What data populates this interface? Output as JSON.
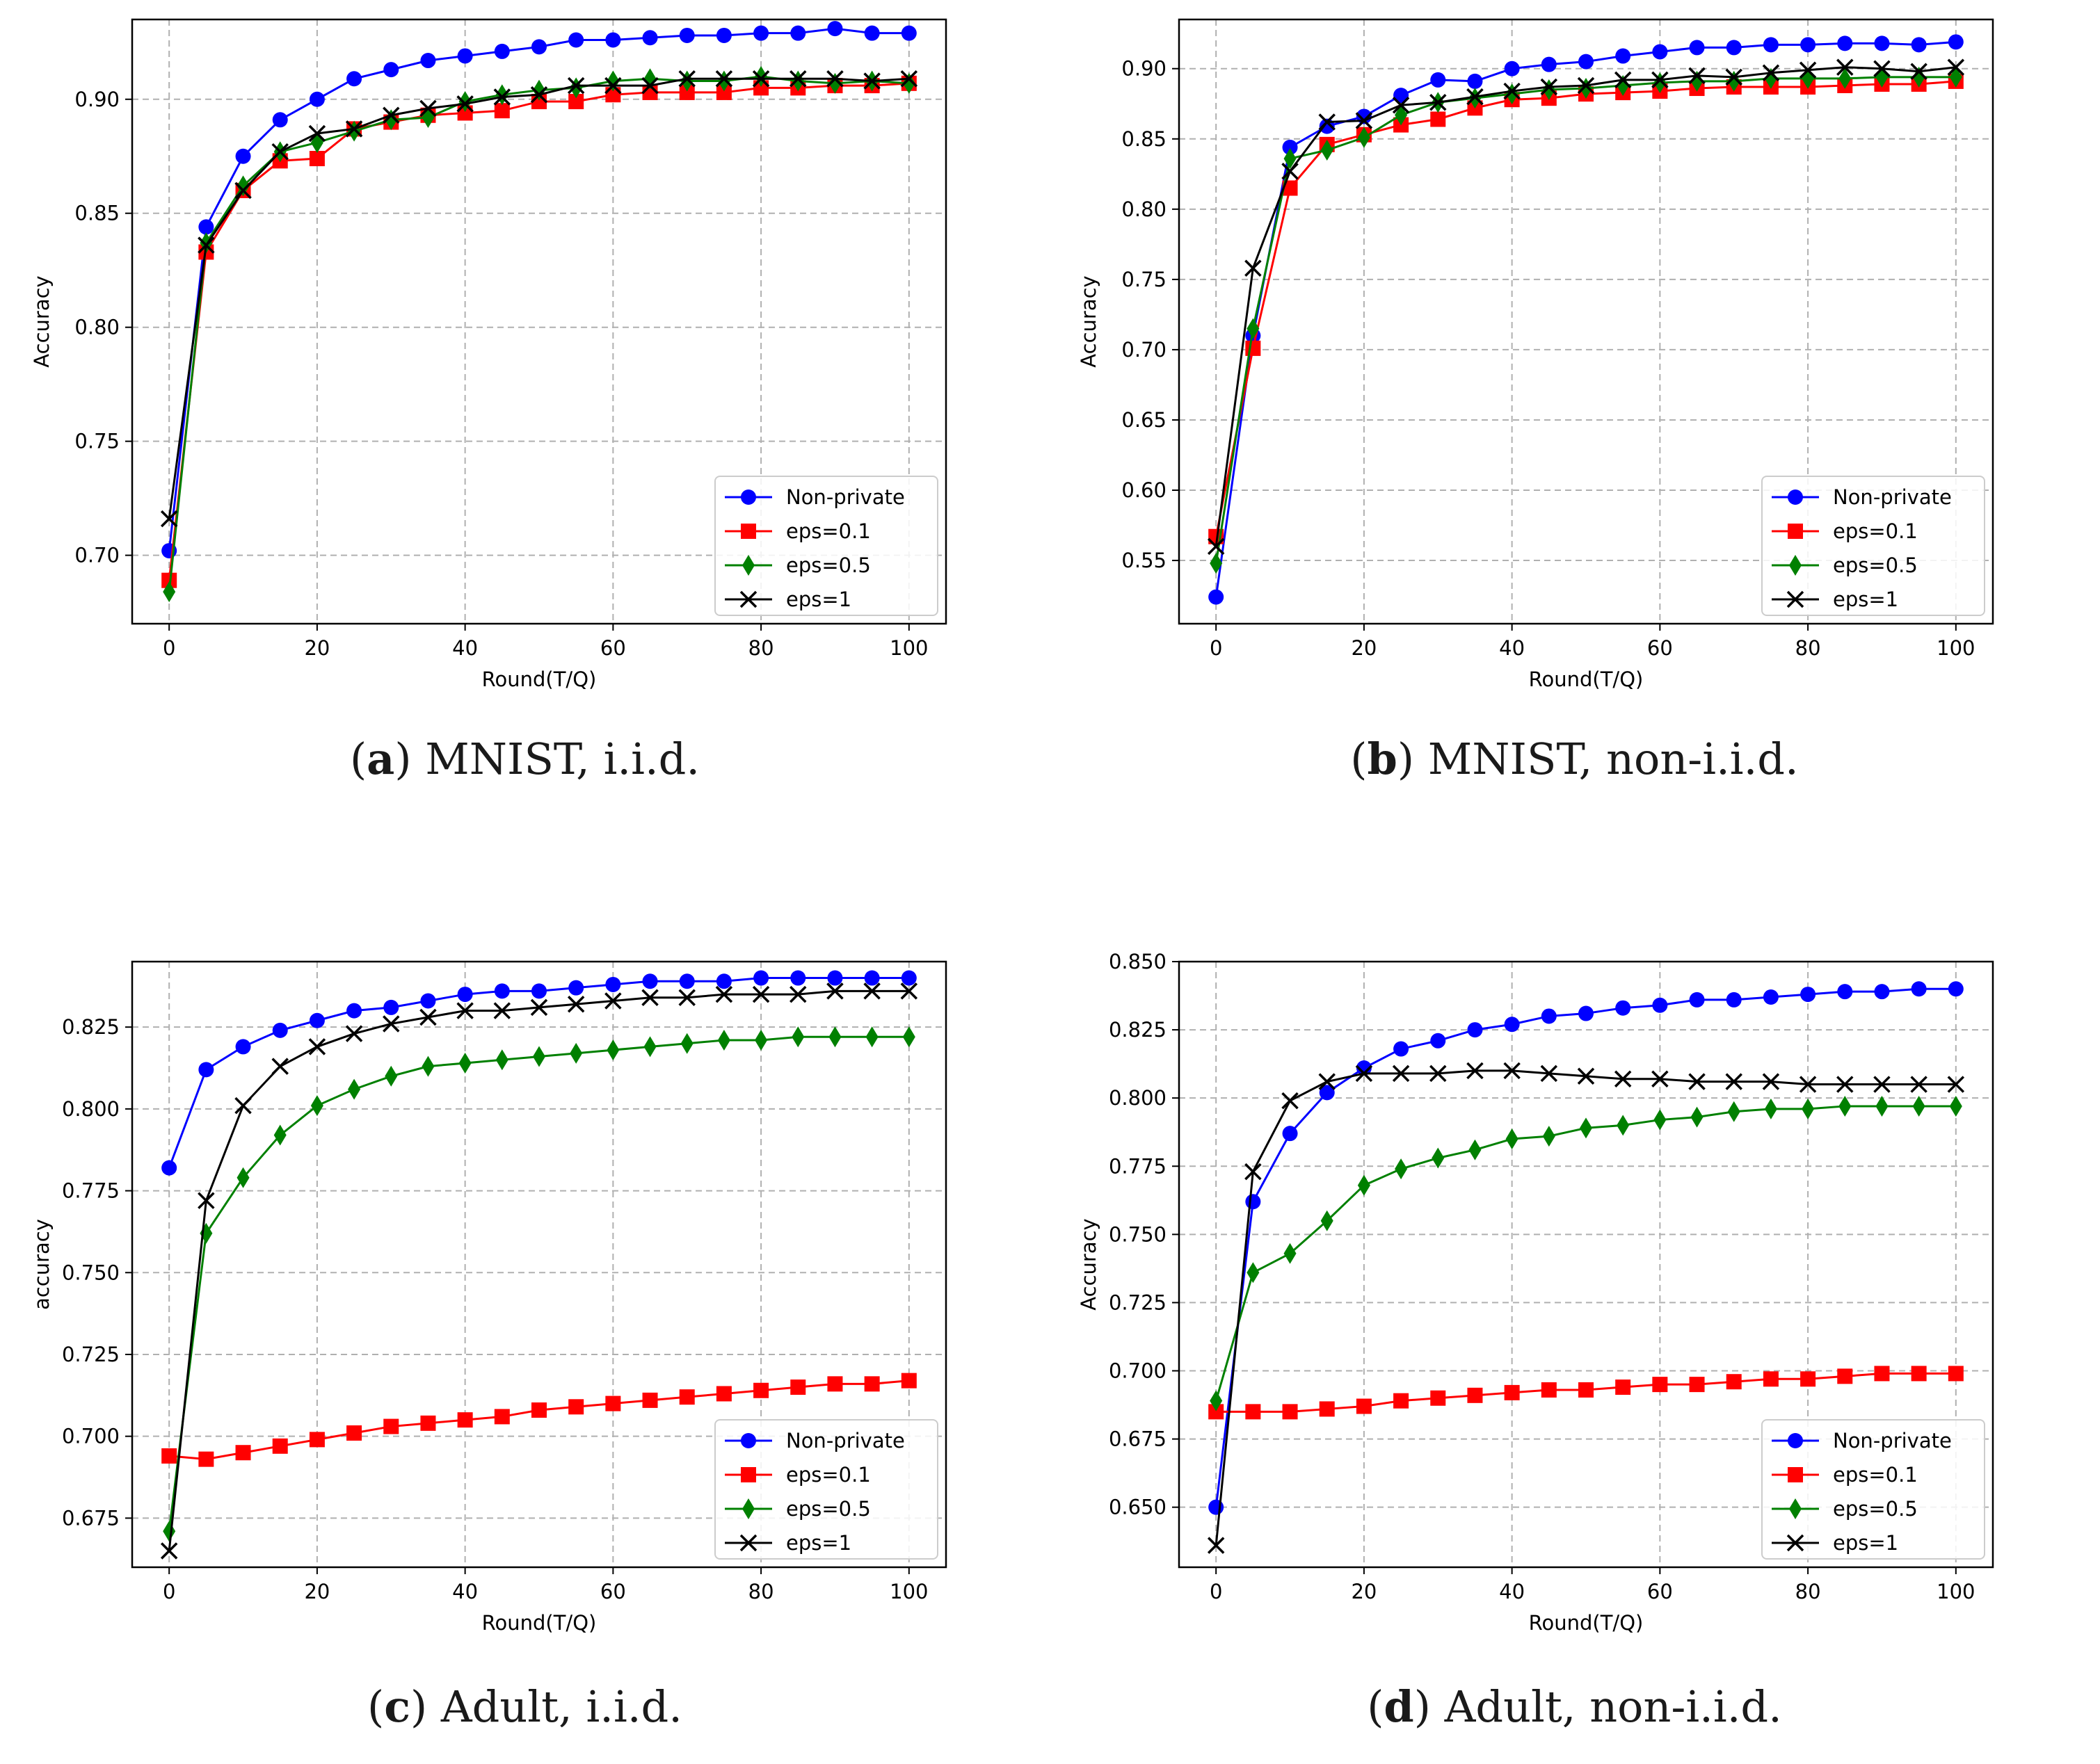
{
  "colors": {
    "blue": "#0000ff",
    "red": "#ff0000",
    "green": "#008000",
    "black": "#000000"
  },
  "chart_data": [
    {
      "type": "line",
      "panel_letter": "a",
      "caption": ") MNIST, i.i.d.",
      "xlabel": "Round(T/Q)",
      "ylabel": "Accuracy",
      "xlim": [
        -5,
        105
      ],
      "ylim": [
        0.67,
        0.935
      ],
      "xticks": [
        0,
        20,
        40,
        60,
        80,
        100
      ],
      "yticks": [
        0.7,
        0.75,
        0.8,
        0.85,
        0.9
      ],
      "ytick_decimals": 2,
      "grid": true,
      "legend": "lower-right",
      "x": [
        0,
        5,
        10,
        15,
        20,
        25,
        30,
        35,
        40,
        45,
        50,
        55,
        60,
        65,
        70,
        75,
        80,
        85,
        90,
        95,
        100
      ],
      "series": [
        {
          "name": "Non-private",
          "color": "#0000ff",
          "marker": "circle",
          "values": [
            0.702,
            0.844,
            0.875,
            0.891,
            0.9,
            0.909,
            0.913,
            0.917,
            0.919,
            0.921,
            0.923,
            0.926,
            0.926,
            0.927,
            0.928,
            0.928,
            0.929,
            0.929,
            0.931,
            0.929,
            0.929
          ]
        },
        {
          "name": "eps=0.1",
          "color": "#ff0000",
          "marker": "square",
          "values": [
            0.689,
            0.833,
            0.86,
            0.873,
            0.874,
            0.887,
            0.89,
            0.893,
            0.894,
            0.895,
            0.899,
            0.899,
            0.902,
            0.903,
            0.903,
            0.903,
            0.905,
            0.905,
            0.906,
            0.906,
            0.907
          ]
        },
        {
          "name": "eps=0.5",
          "color": "#008000",
          "marker": "diamond",
          "values": [
            0.684,
            0.837,
            0.862,
            0.877,
            0.881,
            0.886,
            0.891,
            0.892,
            0.899,
            0.902,
            0.904,
            0.905,
            0.908,
            0.909,
            0.908,
            0.908,
            0.91,
            0.908,
            0.907,
            0.908,
            0.907
          ]
        },
        {
          "name": "eps=1",
          "color": "#000000",
          "marker": "x",
          "values": [
            0.716,
            0.836,
            0.86,
            0.877,
            0.885,
            0.887,
            0.893,
            0.896,
            0.898,
            0.901,
            0.902,
            0.906,
            0.906,
            0.906,
            0.909,
            0.909,
            0.909,
            0.909,
            0.909,
            0.908,
            0.909
          ]
        }
      ]
    },
    {
      "type": "line",
      "panel_letter": "b",
      "caption": ") MNIST, non-i.i.d.",
      "xlabel": "Round(T/Q)",
      "ylabel": "Accuracy",
      "xlim": [
        -5,
        105
      ],
      "ylim": [
        0.505,
        0.935
      ],
      "xticks": [
        0,
        20,
        40,
        60,
        80,
        100
      ],
      "yticks": [
        0.55,
        0.6,
        0.65,
        0.7,
        0.75,
        0.8,
        0.85,
        0.9
      ],
      "ytick_decimals": 2,
      "grid": true,
      "legend": "lower-right",
      "x": [
        0,
        5,
        10,
        15,
        20,
        25,
        30,
        35,
        40,
        45,
        50,
        55,
        60,
        65,
        70,
        75,
        80,
        85,
        90,
        95,
        100
      ],
      "series": [
        {
          "name": "Non-private",
          "color": "#0000ff",
          "marker": "circle",
          "values": [
            0.524,
            0.71,
            0.844,
            0.859,
            0.866,
            0.881,
            0.892,
            0.891,
            0.9,
            0.903,
            0.905,
            0.909,
            0.912,
            0.915,
            0.915,
            0.917,
            0.917,
            0.918,
            0.918,
            0.917,
            0.919
          ]
        },
        {
          "name": "eps=0.1",
          "color": "#ff0000",
          "marker": "square",
          "values": [
            0.567,
            0.701,
            0.815,
            0.846,
            0.853,
            0.86,
            0.864,
            0.872,
            0.878,
            0.879,
            0.882,
            0.883,
            0.884,
            0.886,
            0.887,
            0.887,
            0.887,
            0.888,
            0.889,
            0.889,
            0.891
          ]
        },
        {
          "name": "eps=0.5",
          "color": "#008000",
          "marker": "diamond",
          "values": [
            0.548,
            0.715,
            0.836,
            0.842,
            0.851,
            0.867,
            0.876,
            0.879,
            0.882,
            0.885,
            0.886,
            0.888,
            0.89,
            0.891,
            0.891,
            0.893,
            0.893,
            0.893,
            0.894,
            0.894,
            0.894
          ]
        },
        {
          "name": "eps=1",
          "color": "#000000",
          "marker": "x",
          "values": [
            0.56,
            0.758,
            0.827,
            0.862,
            0.863,
            0.874,
            0.876,
            0.88,
            0.884,
            0.887,
            0.888,
            0.892,
            0.892,
            0.895,
            0.894,
            0.897,
            0.899,
            0.901,
            0.9,
            0.898,
            0.901
          ]
        }
      ]
    },
    {
      "type": "line",
      "panel_letter": "c",
      "caption": ") Adult, i.i.d.",
      "xlabel": "Round(T/Q)",
      "ylabel": "accuracy",
      "xlim": [
        -5,
        105
      ],
      "ylim": [
        0.66,
        0.845
      ],
      "xticks": [
        0,
        20,
        40,
        60,
        80,
        100
      ],
      "yticks": [
        0.675,
        0.7,
        0.725,
        0.75,
        0.775,
        0.8,
        0.825
      ],
      "ytick_decimals": 3,
      "grid": true,
      "legend": "lower-right",
      "x": [
        0,
        5,
        10,
        15,
        20,
        25,
        30,
        35,
        40,
        45,
        50,
        55,
        60,
        65,
        70,
        75,
        80,
        85,
        90,
        95,
        100
      ],
      "series": [
        {
          "name": "Non-private",
          "color": "#0000ff",
          "marker": "circle",
          "values": [
            0.782,
            0.812,
            0.819,
            0.824,
            0.827,
            0.83,
            0.831,
            0.833,
            0.835,
            0.836,
            0.836,
            0.837,
            0.838,
            0.839,
            0.839,
            0.839,
            0.84,
            0.84,
            0.84,
            0.84,
            0.84
          ]
        },
        {
          "name": "eps=0.1",
          "color": "#ff0000",
          "marker": "square",
          "values": [
            0.694,
            0.693,
            0.695,
            0.697,
            0.699,
            0.701,
            0.703,
            0.704,
            0.705,
            0.706,
            0.708,
            0.709,
            0.71,
            0.711,
            0.712,
            0.713,
            0.714,
            0.715,
            0.716,
            0.716,
            0.717
          ]
        },
        {
          "name": "eps=0.5",
          "color": "#008000",
          "marker": "diamond",
          "values": [
            0.671,
            0.762,
            0.779,
            0.792,
            0.801,
            0.806,
            0.81,
            0.813,
            0.814,
            0.815,
            0.816,
            0.817,
            0.818,
            0.819,
            0.82,
            0.821,
            0.821,
            0.822,
            0.822,
            0.822,
            0.822
          ]
        },
        {
          "name": "eps=1",
          "color": "#000000",
          "marker": "x",
          "values": [
            0.665,
            0.772,
            0.801,
            0.813,
            0.819,
            0.823,
            0.826,
            0.828,
            0.83,
            0.83,
            0.831,
            0.832,
            0.833,
            0.834,
            0.834,
            0.835,
            0.835,
            0.835,
            0.836,
            0.836,
            0.836
          ]
        }
      ]
    },
    {
      "type": "line",
      "panel_letter": "d",
      "caption": ") Adult, non-i.i.d.",
      "xlabel": "Round(T/Q)",
      "ylabel": "Accuracy",
      "xlim": [
        -5,
        105
      ],
      "ylim": [
        0.628,
        0.85
      ],
      "xticks": [
        0,
        20,
        40,
        60,
        80,
        100
      ],
      "yticks": [
        0.65,
        0.675,
        0.7,
        0.725,
        0.75,
        0.775,
        0.8,
        0.825,
        0.85
      ],
      "ytick_decimals": 3,
      "grid": true,
      "legend": "lower-right",
      "x": [
        0,
        5,
        10,
        15,
        20,
        25,
        30,
        35,
        40,
        45,
        50,
        55,
        60,
        65,
        70,
        75,
        80,
        85,
        90,
        95,
        100
      ],
      "series": [
        {
          "name": "Non-private",
          "color": "#0000ff",
          "marker": "circle",
          "values": [
            0.65,
            0.762,
            0.787,
            0.802,
            0.811,
            0.818,
            0.821,
            0.825,
            0.827,
            0.83,
            0.831,
            0.833,
            0.834,
            0.836,
            0.836,
            0.837,
            0.838,
            0.839,
            0.839,
            0.84,
            0.84
          ]
        },
        {
          "name": "eps=0.1",
          "color": "#ff0000",
          "marker": "square",
          "values": [
            0.685,
            0.685,
            0.685,
            0.686,
            0.687,
            0.689,
            0.69,
            0.691,
            0.692,
            0.693,
            0.693,
            0.694,
            0.695,
            0.695,
            0.696,
            0.697,
            0.697,
            0.698,
            0.699,
            0.699,
            0.699
          ]
        },
        {
          "name": "eps=0.5",
          "color": "#008000",
          "marker": "diamond",
          "values": [
            0.689,
            0.736,
            0.743,
            0.755,
            0.768,
            0.774,
            0.778,
            0.781,
            0.785,
            0.786,
            0.789,
            0.79,
            0.792,
            0.793,
            0.795,
            0.796,
            0.796,
            0.797,
            0.797,
            0.797,
            0.797
          ]
        },
        {
          "name": "eps=1",
          "color": "#000000",
          "marker": "x",
          "values": [
            0.636,
            0.773,
            0.799,
            0.806,
            0.809,
            0.809,
            0.809,
            0.81,
            0.81,
            0.809,
            0.808,
            0.807,
            0.807,
            0.806,
            0.806,
            0.806,
            0.805,
            0.805,
            0.805,
            0.805,
            0.805
          ]
        }
      ]
    }
  ]
}
